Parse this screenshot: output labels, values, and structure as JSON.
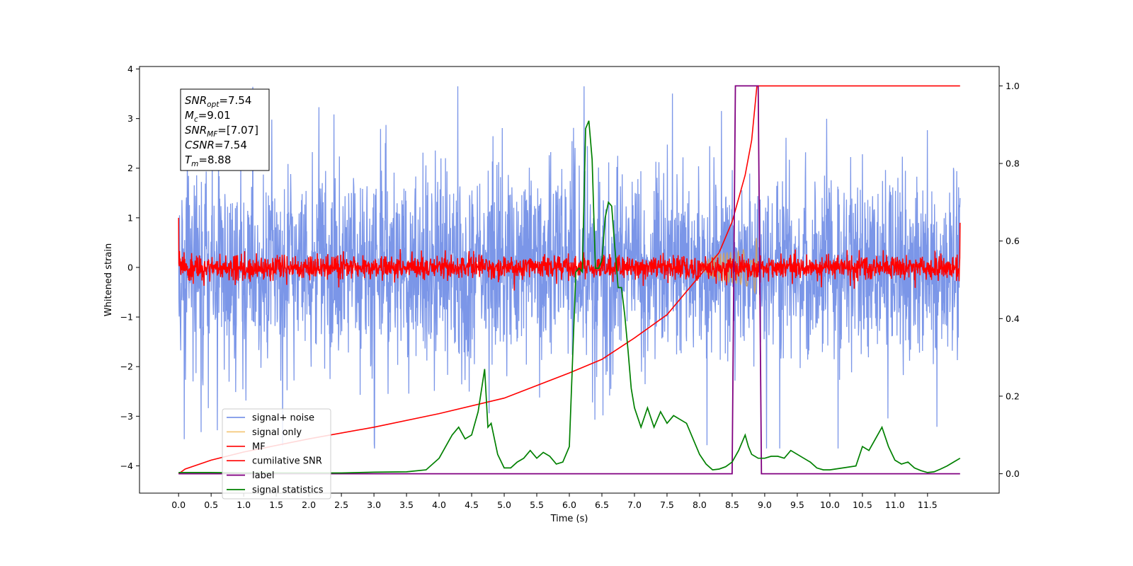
{
  "chart_data": {
    "type": "line",
    "title": "",
    "xlabel": "Time (s)",
    "ylabel": "Whitened strain",
    "ylabel_right": "",
    "xlim": [
      -0.6,
      12.6
    ],
    "ylim": [
      -4.55,
      4.05
    ],
    "ylim_right": [
      -0.05,
      1.05
    ],
    "x_ticks": [
      0.0,
      0.5,
      1.0,
      1.5,
      2.0,
      2.5,
      3.0,
      3.5,
      4.0,
      4.5,
      5.0,
      5.5,
      6.0,
      6.5,
      7.0,
      7.5,
      8.0,
      8.5,
      9.0,
      9.5,
      10.0,
      10.5,
      11.0,
      11.5
    ],
    "x_tick_labels": [
      "0.0",
      "0.5",
      "1.0",
      "1.5",
      "2.0",
      "2.5",
      "3.0",
      "3.5",
      "4.0",
      "4.5",
      "5.0",
      "5.5",
      "6.0",
      "6.5",
      "7.0",
      "7.5",
      "8.0",
      "8.5",
      "9.0",
      "9.5",
      "10.0",
      "10.5",
      "11.0",
      "11.5"
    ],
    "y_ticks": [
      -4,
      -3,
      -2,
      -1,
      0,
      1,
      2,
      3,
      4
    ],
    "y_tick_labels": [
      "−4",
      "−3",
      "−2",
      "−1",
      "0",
      "1",
      "2",
      "3",
      "4"
    ],
    "y_right_ticks": [
      0.0,
      0.2,
      0.4,
      0.6,
      0.8,
      1.0
    ],
    "y_right_tick_labels": [
      "0.0",
      "0.2",
      "0.4",
      "0.6",
      "0.8",
      "1.0"
    ],
    "grid": false,
    "legend_position": "lower-left",
    "stats_box": [
      {
        "base": "SNR",
        "sub": "opt",
        "value": "=7.54"
      },
      {
        "base": "M",
        "sub": "c",
        "value": "=9.01"
      },
      {
        "base": "SNR",
        "sub": "MF",
        "value": "=[7.07]"
      },
      {
        "base": "CSNR",
        "sub": "",
        "value": "=7.54"
      },
      {
        "base": "T",
        "sub": "m",
        "value": "=8.88"
      }
    ],
    "series": [
      {
        "name": "signal+ noise",
        "axis": "left",
        "color": "#7b96e8",
        "kind": "noise",
        "x_range": [
          0,
          12
        ],
        "envelope_typical": 1.3,
        "envelope_peak": 3.65,
        "baseline_offset": 0.0
      },
      {
        "name": "signal only",
        "axis": "left",
        "color": "#f5c77a",
        "kind": "chirp",
        "x_range": [
          8.0,
          8.88
        ],
        "peak_amplitude": 0.65,
        "note": ""
      },
      {
        "name": "MF",
        "axis": "left",
        "color": "#ff0000",
        "kind": "noise",
        "x_range": [
          0,
          12
        ],
        "envelope_typical": 0.3,
        "envelope_peak": 0.55,
        "edge_values": [
          1.0,
          0.9
        ]
      },
      {
        "name": "cumilative SNR",
        "axis": "right",
        "color": "#ff0000",
        "x": [
          0.0,
          0.1,
          0.5,
          1.0,
          2.0,
          3.0,
          4.0,
          5.0,
          6.0,
          6.5,
          7.0,
          7.5,
          8.0,
          8.3,
          8.5,
          8.7,
          8.8,
          8.88,
          9.0,
          11.5,
          12.0
        ],
        "y": [
          0.0,
          0.012,
          0.035,
          0.056,
          0.09,
          0.12,
          0.155,
          0.195,
          0.26,
          0.295,
          0.35,
          0.41,
          0.51,
          0.57,
          0.65,
          0.77,
          0.86,
          1.0,
          1.0,
          1.0,
          1.0
        ]
      },
      {
        "name": "label",
        "axis": "right",
        "color": "#800080",
        "x": [
          0.0,
          8.5,
          8.55,
          8.9,
          8.95,
          12.0
        ],
        "y": [
          0.0,
          0.0,
          1.0,
          1.0,
          0.0,
          0.0
        ]
      },
      {
        "name": "signal statistics",
        "axis": "right",
        "color": "#008000",
        "x": [
          0.0,
          0.5,
          1.0,
          1.5,
          2.0,
          2.5,
          3.0,
          3.5,
          3.8,
          4.0,
          4.2,
          4.3,
          4.4,
          4.5,
          4.6,
          4.7,
          4.75,
          4.8,
          4.9,
          5.0,
          5.1,
          5.2,
          5.3,
          5.4,
          5.5,
          5.6,
          5.7,
          5.8,
          5.9,
          6.0,
          6.1,
          6.15,
          6.2,
          6.25,
          6.3,
          6.35,
          6.4,
          6.45,
          6.5,
          6.55,
          6.6,
          6.65,
          6.7,
          6.75,
          6.8,
          6.85,
          6.9,
          6.95,
          7.0,
          7.1,
          7.2,
          7.3,
          7.4,
          7.5,
          7.6,
          7.7,
          7.8,
          7.9,
          8.0,
          8.1,
          8.2,
          8.3,
          8.4,
          8.5,
          8.6,
          8.7,
          8.75,
          8.8,
          8.9,
          9.0,
          9.1,
          9.2,
          9.3,
          9.4,
          9.5,
          9.6,
          9.7,
          9.8,
          9.9,
          10.0,
          10.2,
          10.4,
          10.5,
          10.6,
          10.7,
          10.8,
          10.9,
          11.0,
          11.1,
          11.2,
          11.3,
          11.4,
          11.5,
          11.6,
          11.7,
          11.8,
          11.9,
          12.0
        ],
        "y": [
          0.003,
          0.003,
          0.002,
          0.002,
          0.002,
          0.002,
          0.004,
          0.005,
          0.01,
          0.04,
          0.1,
          0.12,
          0.09,
          0.1,
          0.16,
          0.27,
          0.12,
          0.13,
          0.05,
          0.015,
          0.015,
          0.03,
          0.04,
          0.06,
          0.04,
          0.055,
          0.045,
          0.025,
          0.03,
          0.07,
          0.52,
          0.53,
          0.52,
          0.89,
          0.91,
          0.81,
          0.53,
          0.53,
          0.55,
          0.66,
          0.7,
          0.69,
          0.58,
          0.48,
          0.48,
          0.41,
          0.32,
          0.22,
          0.17,
          0.12,
          0.17,
          0.12,
          0.16,
          0.13,
          0.15,
          0.14,
          0.13,
          0.09,
          0.05,
          0.025,
          0.01,
          0.012,
          0.018,
          0.03,
          0.06,
          0.1,
          0.07,
          0.05,
          0.04,
          0.04,
          0.045,
          0.045,
          0.04,
          0.06,
          0.05,
          0.04,
          0.03,
          0.015,
          0.01,
          0.01,
          0.015,
          0.02,
          0.07,
          0.06,
          0.09,
          0.12,
          0.07,
          0.035,
          0.025,
          0.03,
          0.015,
          0.008,
          0.003,
          0.005,
          0.012,
          0.02,
          0.03,
          0.04
        ]
      }
    ]
  }
}
